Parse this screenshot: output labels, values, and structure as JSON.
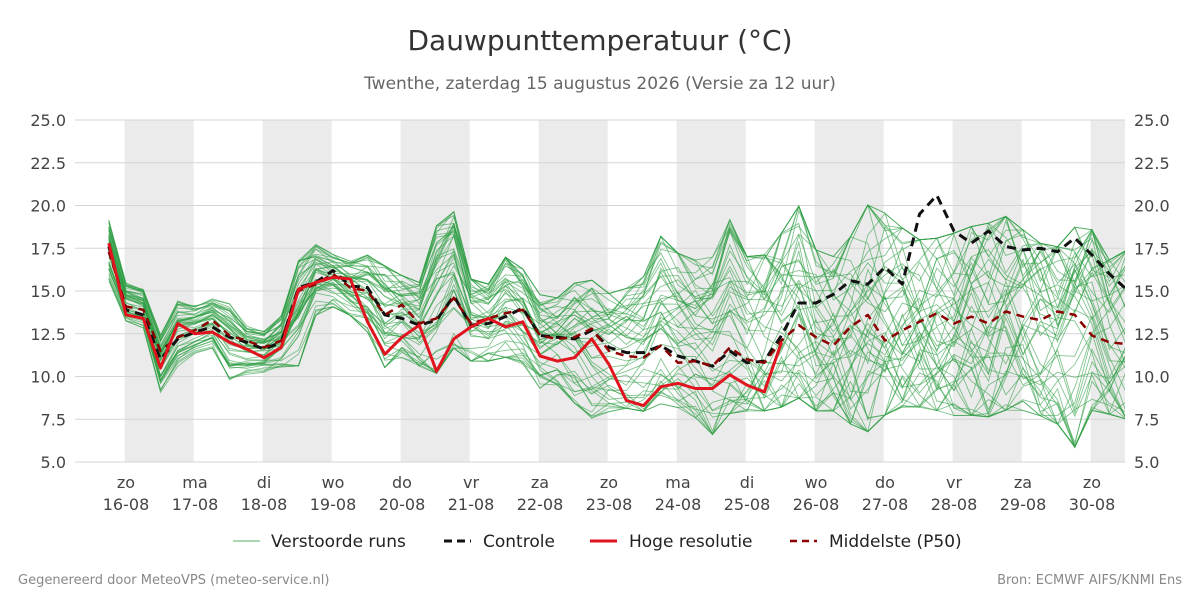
{
  "chart_data": {
    "type": "line",
    "title": "Dauwpunttemperatuur (°C)",
    "subtitle": "Twenthe, zaterdag 15 augustus 2026 (Versie za 12 uur)",
    "ylim": [
      5.0,
      25.0
    ],
    "yticks": [
      "5.0",
      "7.5",
      "10.0",
      "12.5",
      "15.0",
      "17.5",
      "20.0",
      "22.5",
      "25.0"
    ],
    "x_start_day": -0.25,
    "x_end_day": 14.5,
    "x_step_days": 0.25,
    "day_labels": [
      {
        "weekday": "zo",
        "date": "16-08"
      },
      {
        "weekday": "ma",
        "date": "17-08"
      },
      {
        "weekday": "di",
        "date": "18-08"
      },
      {
        "weekday": "wo",
        "date": "19-08"
      },
      {
        "weekday": "do",
        "date": "20-08"
      },
      {
        "weekday": "vr",
        "date": "21-08"
      },
      {
        "weekday": "za",
        "date": "22-08"
      },
      {
        "weekday": "zo",
        "date": "23-08"
      },
      {
        "weekday": "ma",
        "date": "24-08"
      },
      {
        "weekday": "di",
        "date": "25-08"
      },
      {
        "weekday": "wo",
        "date": "26-08"
      },
      {
        "weekday": "do",
        "date": "27-08"
      },
      {
        "weekday": "vr",
        "date": "28-08"
      },
      {
        "weekday": "za",
        "date": "29-08"
      },
      {
        "weekday": "zo",
        "date": "30-08"
      }
    ],
    "shaded_days": [
      "16-08",
      "18-08",
      "20-08",
      "22-08",
      "24-08",
      "26-08",
      "28-08",
      "30-08"
    ],
    "grid": true,
    "legend_position": "bottom",
    "legend": {
      "ensemble": "Verstoorde runs",
      "control": "Controle",
      "hires": "Hoge resolutie",
      "median": "Middelste (P50)"
    },
    "colors": {
      "ensemble": "#2e9e44",
      "control": "#111111",
      "hires": "#e0141e",
      "median": "#8b0000",
      "shade": "#ebebeb",
      "grid": "#d5d5d5"
    },
    "series": [
      {
        "name": "Hoge resolutie",
        "style": "hires",
        "start_day": -0.25,
        "values": [
          17.8,
          13.6,
          13.4,
          10.5,
          13.1,
          12.5,
          12.6,
          12.0,
          11.6,
          11.1,
          11.7,
          15.1,
          15.5,
          15.8,
          15.7,
          13.2,
          11.3,
          12.3,
          13.0,
          10.3,
          12.2,
          12.9,
          13.4,
          12.9,
          13.2,
          11.2,
          10.9,
          11.1,
          12.2,
          10.7,
          8.6,
          8.3,
          9.4,
          9.6,
          9.3,
          9.3,
          10.1,
          9.5,
          9.1,
          12.0
        ]
      },
      {
        "name": "Controle",
        "style": "control",
        "start_day": -0.25,
        "values": [
          17.6,
          13.9,
          13.6,
          11.0,
          12.2,
          12.6,
          12.9,
          12.3,
          12.0,
          11.6,
          12.0,
          15.2,
          15.5,
          16.2,
          15.3,
          15.2,
          13.6,
          13.4,
          13.0,
          13.3,
          14.7,
          13.0,
          13.1,
          13.5,
          14.0,
          12.4,
          12.3,
          12.2,
          12.7,
          11.7,
          11.4,
          11.4,
          11.8,
          11.2,
          10.9,
          10.6,
          11.5,
          10.8,
          10.9,
          12.4,
          14.3,
          14.3,
          14.8,
          15.6,
          15.4,
          16.4,
          15.4,
          19.5,
          20.6,
          18.5,
          17.8,
          18.5,
          17.6,
          17.4,
          17.5,
          17.3,
          18.1,
          17.1,
          16.0,
          15.1
        ]
      },
      {
        "name": "Middelste (P50)",
        "style": "median",
        "start_day": -0.25,
        "values": [
          17.3,
          14.1,
          13.9,
          11.5,
          12.3,
          12.7,
          13.3,
          12.4,
          12.1,
          11.7,
          12.1,
          15.0,
          15.4,
          16.0,
          15.2,
          15.0,
          13.6,
          14.2,
          13.1,
          13.4,
          14.6,
          13.1,
          13.4,
          13.7,
          13.9,
          12.4,
          12.2,
          12.3,
          12.8,
          11.5,
          11.2,
          11.1,
          11.8,
          10.8,
          10.9,
          10.6,
          11.7,
          11.0,
          10.8,
          12.1,
          13.0,
          12.3,
          11.8,
          12.9,
          13.6,
          12.1,
          12.7,
          13.2,
          13.7,
          13.1,
          13.5,
          13.1,
          13.8,
          13.5,
          13.3,
          13.8,
          13.6,
          12.4,
          12.0,
          11.9
        ]
      }
    ],
    "ensemble": {
      "name": "Verstoorde runs",
      "members": 50,
      "start_day": -0.25,
      "step_days": 0.25,
      "band_low": [
        15.5,
        13.2,
        12.8,
        9.0,
        10.5,
        11.3,
        11.6,
        9.5,
        10.0,
        10.2,
        10.5,
        10.5,
        13.5,
        14.0,
        13.5,
        12.5,
        10.4,
        11.0,
        10.5,
        10.0,
        11.5,
        10.8,
        10.8,
        11.0,
        10.6,
        9.2,
        9.4,
        8.3,
        7.4,
        7.8,
        8.0,
        7.8,
        8.2,
        8.0,
        7.4,
        6.4,
        7.6,
        7.8,
        7.8,
        8.0,
        8.5,
        7.8,
        7.8,
        7.0,
        6.5,
        7.5,
        8.0,
        8.0,
        7.8,
        7.5,
        7.5,
        7.4,
        7.8,
        7.8,
        7.5,
        7.0,
        5.6,
        7.8,
        7.6,
        7.3
      ],
      "band_high": [
        19.2,
        15.5,
        15.2,
        12.5,
        14.5,
        14.2,
        14.6,
        14.4,
        13.0,
        12.7,
        13.6,
        16.9,
        17.8,
        17.2,
        16.8,
        17.2,
        16.6,
        16.0,
        15.6,
        19.0,
        19.8,
        15.8,
        15.5,
        17.1,
        16.4,
        14.9,
        14.7,
        15.6,
        15.8,
        15.0,
        15.3,
        16.0,
        18.4,
        17.4,
        17.0,
        17.2,
        19.4,
        17.2,
        17.3,
        18.6,
        20.2,
        17.6,
        17.2,
        18.4,
        20.3,
        19.8,
        18.9,
        18.2,
        18.3,
        18.6,
        19.0,
        19.2,
        19.6,
        18.8,
        18.0,
        17.8,
        19.0,
        18.8,
        17.0,
        17.6
      ]
    }
  },
  "footer": {
    "left": "Gegenereerd door MeteoVPS (meteo-service.nl)",
    "right": "Bron: ECMWF AIFS/KNMI Ens"
  }
}
